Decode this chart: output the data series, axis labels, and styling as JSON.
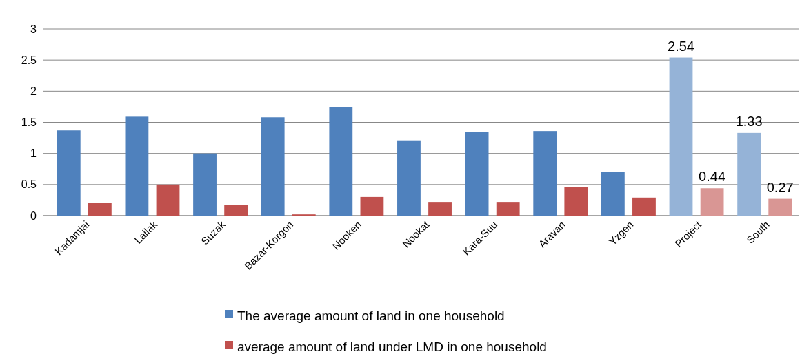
{
  "chart_data": {
    "type": "bar",
    "categories": [
      "Kadamjai",
      "Lailak",
      "Suzak",
      "Bazar-Korgon",
      "Nooken",
      "Nookat",
      "Kara-Suu",
      "Aravan",
      "Yzgen",
      "Project",
      "South"
    ],
    "series": [
      {
        "name": "The average amount of land in one household",
        "color": "#4f81bd",
        "colors": [
          "#4f81bd",
          "#4f81bd",
          "#4f81bd",
          "#4f81bd",
          "#4f81bd",
          "#4f81bd",
          "#4f81bd",
          "#4f81bd",
          "#4f81bd",
          "#95b3d7",
          "#95b3d7"
        ],
        "values": [
          1.37,
          1.59,
          1.0,
          1.58,
          1.74,
          1.21,
          1.35,
          1.36,
          0.7,
          2.54,
          1.33
        ],
        "value_labels": [
          null,
          null,
          null,
          null,
          null,
          null,
          null,
          null,
          null,
          "2.54",
          "1.33"
        ]
      },
      {
        "name": "average amount of land under LMD in one household",
        "color": "#c0504d",
        "colors": [
          "#c0504d",
          "#c0504d",
          "#c0504d",
          "#c0504d",
          "#c0504d",
          "#c0504d",
          "#c0504d",
          "#c0504d",
          "#c0504d",
          "#d99694",
          "#d99694"
        ],
        "values": [
          0.2,
          0.5,
          0.17,
          0.02,
          0.3,
          0.22,
          0.22,
          0.46,
          0.29,
          0.44,
          0.27
        ],
        "value_labels": [
          null,
          null,
          null,
          null,
          null,
          null,
          null,
          null,
          null,
          "0.44",
          "0.27"
        ]
      }
    ],
    "ylim": [
      0,
      3
    ],
    "yticks": [
      0,
      0.5,
      1,
      1.5,
      2,
      2.5,
      3
    ],
    "grid": "y",
    "legend": "bottom"
  }
}
